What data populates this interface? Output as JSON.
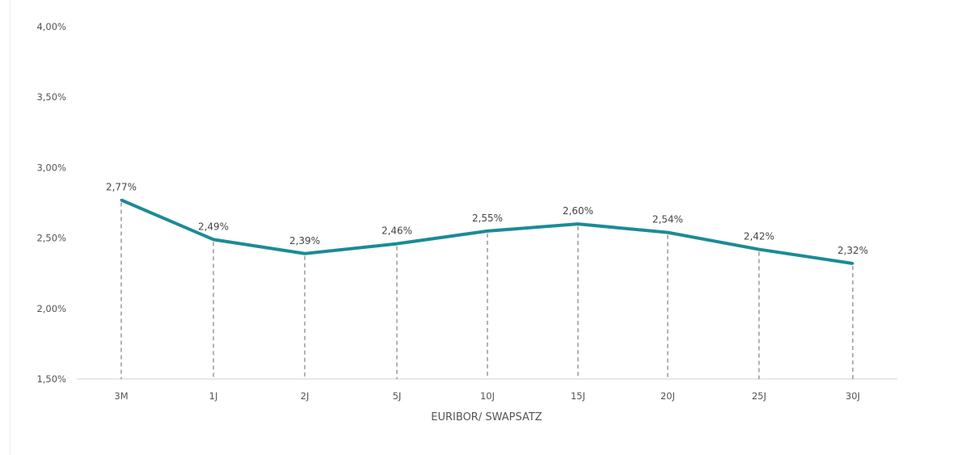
{
  "chart_data": {
    "type": "line",
    "title": "",
    "xlabel": "EURIBOR/ SWAPSATZ",
    "ylabel": "",
    "categories": [
      "3M",
      "1J",
      "2J",
      "5J",
      "10J",
      "15J",
      "20J",
      "25J",
      "30J"
    ],
    "series": [
      {
        "values": [
          2.77,
          2.49,
          2.39,
          2.46,
          2.55,
          2.6,
          2.54,
          2.42,
          2.32
        ]
      }
    ],
    "data_labels": [
      "2,77%",
      "2,49%",
      "2,39%",
      "2,46%",
      "2,55%",
      "2,60%",
      "2,54%",
      "2,42%",
      "2,32%"
    ],
    "ylim": [
      1.5,
      4.0
    ],
    "yticks": [
      1.5,
      2.0,
      2.5,
      3.0,
      3.5,
      4.0
    ],
    "ytick_labels": [
      "1,50%",
      "2,00%",
      "2,50%",
      "3,00%",
      "3,50%",
      "4,00%"
    ],
    "grid": false,
    "drop_lines": true,
    "line_color": "#1b8b96"
  }
}
